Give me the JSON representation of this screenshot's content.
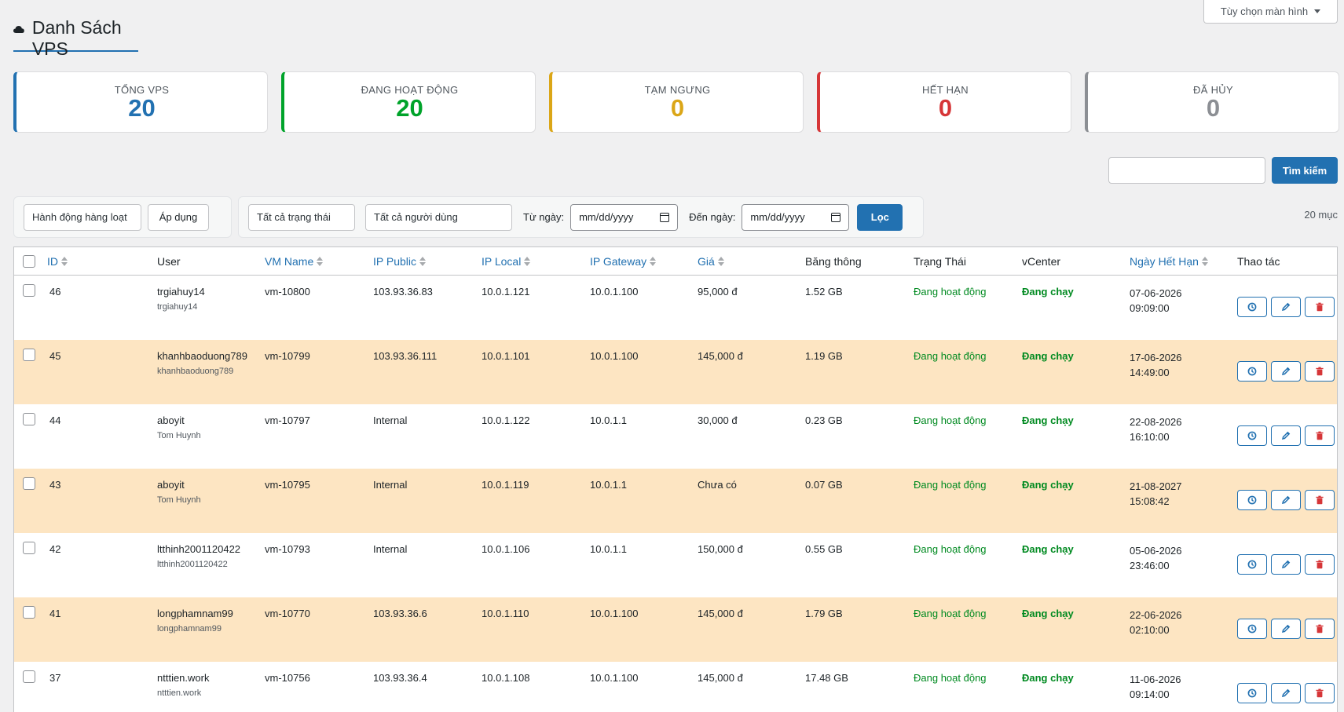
{
  "screen_options": {
    "label": "Tùy chọn màn hình"
  },
  "page": {
    "title": "Danh Sách VPS",
    "icon": "cloud-icon"
  },
  "stats": [
    {
      "label": "TỔNG VPS",
      "value": "20",
      "color": "#2271b1"
    },
    {
      "label": "ĐANG HOẠT ĐỘNG",
      "value": "20",
      "color": "#00a32a"
    },
    {
      "label": "TẠM NGƯNG",
      "value": "0",
      "color": "#dba617"
    },
    {
      "label": "HẾT HẠN",
      "value": "0",
      "color": "#d63638"
    },
    {
      "label": "ĐÃ HỦY",
      "value": "0",
      "color": "#8c8f94"
    }
  ],
  "search": {
    "value": "",
    "button": "Tìm kiếm"
  },
  "bulk": {
    "select": "Hành động hàng loạt",
    "apply": "Áp dụng"
  },
  "filters": {
    "status": "Tất cả trạng thái",
    "users": "Tất cả người dùng",
    "from_label": "Từ ngày:",
    "from_value": "mm/dd/yyyy",
    "to_label": "Đến ngày:",
    "to_value": "mm/dd/yyyy",
    "button": "Lọc"
  },
  "count": "20 mục",
  "table": {
    "headers": {
      "id": "ID",
      "user": "User",
      "vm": "VM Name",
      "ip_public": "IP Public",
      "ip_local": "IP Local",
      "ip_gateway": "IP Gateway",
      "price": "Giá",
      "bandwidth": "Băng thông",
      "status": "Trạng Thái",
      "vcenter": "vCenter",
      "expiry": "Ngày Hết Hạn",
      "actions": "Thao tác"
    },
    "rows": [
      {
        "id": "46",
        "user": "trgiahuy14",
        "user_sub": "trgiahuy14",
        "vm": "vm-10800",
        "ip_public": "103.93.36.83",
        "ip_local": "10.0.1.121",
        "ip_gateway": "10.0.1.100",
        "price": "95,000 đ",
        "bandwidth": "1.52 GB",
        "status": "Đang hoạt động",
        "vcenter": "Đang chạy",
        "exp_date": "07-06-2026",
        "exp_time": "09:09:00"
      },
      {
        "id": "45",
        "user": "khanhbaoduong789",
        "user_sub": "khanhbaoduong789",
        "vm": "vm-10799",
        "ip_public": "103.93.36.111",
        "ip_local": "10.0.1.101",
        "ip_gateway": "10.0.1.100",
        "price": "145,000 đ",
        "bandwidth": "1.19 GB",
        "status": "Đang hoạt động",
        "vcenter": "Đang chạy",
        "exp_date": "17-06-2026",
        "exp_time": "14:49:00"
      },
      {
        "id": "44",
        "user": "aboyit",
        "user_sub": "Tom Huynh",
        "vm": "vm-10797",
        "ip_public": "Internal",
        "ip_local": "10.0.1.122",
        "ip_gateway": "10.0.1.1",
        "price": "30,000 đ",
        "bandwidth": "0.23 GB",
        "status": "Đang hoạt động",
        "vcenter": "Đang chạy",
        "exp_date": "22-08-2026",
        "exp_time": "16:10:00"
      },
      {
        "id": "43",
        "user": "aboyit",
        "user_sub": "Tom Huynh",
        "vm": "vm-10795",
        "ip_public": "Internal",
        "ip_local": "10.0.1.119",
        "ip_gateway": "10.0.1.1",
        "price": "Chưa có",
        "bandwidth": "0.07 GB",
        "status": "Đang hoạt động",
        "vcenter": "Đang chạy",
        "exp_date": "21-08-2027",
        "exp_time": "15:08:42"
      },
      {
        "id": "42",
        "user": "ltthinh2001120422",
        "user_sub": "ltthinh2001120422",
        "vm": "vm-10793",
        "ip_public": "Internal",
        "ip_local": "10.0.1.106",
        "ip_gateway": "10.0.1.1",
        "price": "150,000 đ",
        "bandwidth": "0.55 GB",
        "status": "Đang hoạt động",
        "vcenter": "Đang chạy",
        "exp_date": "05-06-2026",
        "exp_time": "23:46:00"
      },
      {
        "id": "41",
        "user": "longphamnam99",
        "user_sub": "longphamnam99",
        "vm": "vm-10770",
        "ip_public": "103.93.36.6",
        "ip_local": "10.0.1.110",
        "ip_gateway": "10.0.1.100",
        "price": "145,000 đ",
        "bandwidth": "1.79 GB",
        "status": "Đang hoạt động",
        "vcenter": "Đang chạy",
        "exp_date": "22-06-2026",
        "exp_time": "02:10:00"
      },
      {
        "id": "37",
        "user": "ntttien.work",
        "user_sub": "ntttien.work",
        "vm": "vm-10756",
        "ip_public": "103.93.36.4",
        "ip_local": "10.0.1.108",
        "ip_gateway": "10.0.1.100",
        "price": "145,000 đ",
        "bandwidth": "17.48 GB",
        "status": "Đang hoạt động",
        "vcenter": "Đang chạy",
        "exp_date": "11-06-2026",
        "exp_time": "09:14:00"
      }
    ],
    "action_icons": [
      "history-icon",
      "pencil-icon",
      "trash-icon"
    ]
  }
}
